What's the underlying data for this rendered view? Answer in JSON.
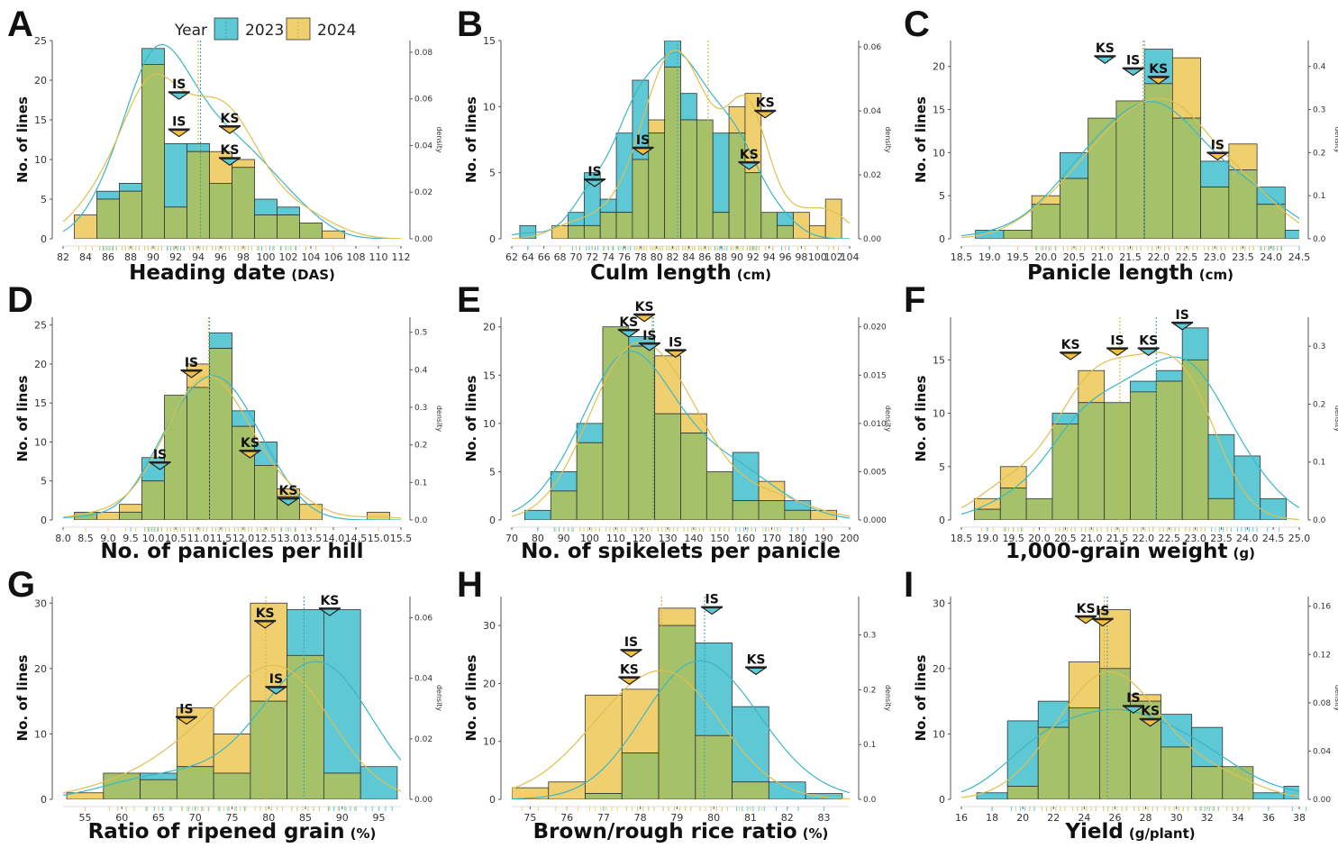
{
  "colors": {
    "y2023": "#5ec8d4",
    "y2024": "#f0d06e",
    "overlap": "#a5c26a",
    "edge": "#333333",
    "axis": "#555555"
  },
  "legend": {
    "title": "Year",
    "items": [
      "2023",
      "2024"
    ]
  },
  "y_axis_label": "No. of lines",
  "density_axis_label": "density",
  "chart_data": [
    {
      "letter": "A",
      "type": "bar",
      "xlabel": "Heading date",
      "xunit": "(DAS)",
      "xlim": [
        82,
        112
      ],
      "xticks": [
        82,
        84,
        86,
        88,
        90,
        92,
        94,
        96,
        98,
        100,
        102,
        104,
        106,
        108,
        110,
        112
      ],
      "ylim": [
        0,
        25
      ],
      "yticks": [
        0,
        5,
        10,
        15,
        20,
        25
      ],
      "dlim": [
        0,
        0.085
      ],
      "dticks": [
        "0.00",
        "0.02",
        "0.04",
        "0.06",
        "0.08"
      ],
      "dvals": [
        0,
        0.02,
        0.04,
        0.06,
        0.08
      ],
      "bin_start": 83,
      "bin_width": 2,
      "series": [
        {
          "name": "2023",
          "values": [
            0,
            6,
            7,
            24,
            12,
            12,
            7,
            9,
            5,
            4,
            2,
            0
          ]
        },
        {
          "name": "2024",
          "values": [
            3,
            5,
            6,
            22,
            4,
            11,
            11,
            10,
            3,
            3,
            2,
            1
          ]
        }
      ],
      "means": {
        "2023": 94.2,
        "2024": 94.0
      },
      "markers": [
        {
          "label": "IS",
          "year": "2023",
          "x": 92.3,
          "y": 18.5
        },
        {
          "label": "IS",
          "year": "2024",
          "x": 92.3,
          "y": 13.8
        },
        {
          "label": "KS",
          "year": "2024",
          "x": 96.8,
          "y": 14.2
        },
        {
          "label": "KS",
          "year": "2023",
          "x": 96.8,
          "y": 10.2
        }
      ]
    },
    {
      "letter": "B",
      "type": "bar",
      "xlabel": "Culm length",
      "xunit": "(cm)",
      "xlim": [
        62,
        104
      ],
      "xticks": [
        62,
        64,
        66,
        68,
        70,
        72,
        74,
        76,
        78,
        80,
        82,
        84,
        86,
        88,
        90,
        92,
        94,
        96,
        98,
        100,
        102,
        104
      ],
      "ylim": [
        0,
        15
      ],
      "yticks": [
        0,
        5,
        10,
        15
      ],
      "dlim": [
        0,
        0.062
      ],
      "dticks": [
        "0.00",
        "0.02",
        "0.04",
        "0.06"
      ],
      "dvals": [
        0,
        0.02,
        0.04,
        0.06
      ],
      "bin_start": 63,
      "bin_width": 2,
      "series": [
        {
          "name": "2023",
          "values": [
            1,
            0,
            0,
            2,
            5,
            3,
            8,
            12,
            8,
            15,
            11,
            9,
            8,
            8,
            5,
            2,
            2,
            0,
            0,
            0
          ]
        },
        {
          "name": "2024",
          "values": [
            0,
            0,
            1,
            1,
            1,
            2,
            2,
            6,
            9,
            13,
            9,
            9,
            2,
            10,
            11,
            2,
            1,
            2,
            1,
            3
          ]
        }
      ],
      "means": {
        "2023": 82.6,
        "2024": 86.4
      },
      "markers": [
        {
          "label": "IS",
          "year": "2023",
          "x": 72.3,
          "y": 4.5
        },
        {
          "label": "IS",
          "year": "2024",
          "x": 78.3,
          "y": 6.9
        },
        {
          "label": "KS",
          "year": "2024",
          "x": 93.5,
          "y": 9.7
        },
        {
          "label": "KS",
          "year": "2023",
          "x": 91.5,
          "y": 5.8
        }
      ]
    },
    {
      "letter": "C",
      "type": "bar",
      "xlabel": "Panicle length",
      "xunit": "(cm)",
      "xlim": [
        18.5,
        24.5
      ],
      "xticks": [
        "18.5",
        "19.0",
        "19.5",
        "20.0",
        "20.5",
        "21.0",
        "21.5",
        "22.0",
        "22.5",
        "23.0",
        "23.5",
        "24.0",
        "24.5"
      ],
      "ylim": [
        0,
        23
      ],
      "yticks": [
        0,
        5,
        10,
        15,
        20
      ],
      "dlim": [
        0,
        0.46
      ],
      "dticks": [
        "0.0",
        "0.1",
        "0.2",
        "0.3",
        "0.4"
      ],
      "dvals": [
        0,
        0.1,
        0.2,
        0.3,
        0.4
      ],
      "bin_start": 18.75,
      "bin_width": 0.5,
      "series": [
        {
          "name": "2023",
          "values": [
            1,
            1,
            4,
            10,
            14,
            16,
            22,
            14,
            9,
            8,
            6,
            1
          ]
        },
        {
          "name": "2024",
          "values": [
            0,
            1,
            5,
            7,
            14,
            16,
            18,
            21,
            6,
            11,
            4,
            0
          ]
        }
      ],
      "means": {
        "2023": 21.75,
        "2024": 21.72
      },
      "markers": [
        {
          "label": "KS",
          "year": "2023",
          "x": 21.05,
          "y": 21.2
        },
        {
          "label": "IS",
          "year": "2023",
          "x": 21.55,
          "y": 19.8
        },
        {
          "label": "KS",
          "year": "2024",
          "x": 22.0,
          "y": 18.8
        },
        {
          "label": "IS",
          "year": "2024",
          "x": 23.05,
          "y": 10.0
        }
      ]
    },
    {
      "letter": "D",
      "type": "bar",
      "xlabel": "No. of panicles per hill",
      "xunit": "",
      "xlim": [
        8.0,
        15.5
      ],
      "xticks": [
        "8.0",
        "8.5",
        "9.0",
        "9.5",
        "10.0",
        "10.5",
        "11.0",
        "11.5",
        "12.0",
        "12.5",
        "13.0",
        "13.5",
        "14.0",
        "14.5",
        "15.0",
        "15.5"
      ],
      "ylim": [
        0,
        26
      ],
      "yticks": [
        0,
        5,
        10,
        15,
        20,
        25
      ],
      "dlim": [
        0,
        0.54
      ],
      "dticks": [
        "0.0",
        "0.1",
        "0.2",
        "0.3",
        "0.4",
        "0.5"
      ],
      "dvals": [
        0,
        0.1,
        0.2,
        0.3,
        0.4,
        0.5
      ],
      "bin_start": 8.25,
      "bin_width": 0.5,
      "series": [
        {
          "name": "2023",
          "values": [
            1,
            0,
            1,
            8,
            16,
            17,
            24,
            14,
            10,
            3,
            0,
            0,
            0,
            0
          ]
        },
        {
          "name": "2024",
          "values": [
            1,
            1,
            2,
            5,
            16,
            20,
            22,
            12,
            7,
            4,
            2,
            0,
            0,
            1
          ]
        }
      ],
      "means": {
        "2023": 11.25,
        "2024": 11.23
      },
      "markers": [
        {
          "label": "IS",
          "year": "2024",
          "x": 10.85,
          "y": 19.2
        },
        {
          "label": "IS",
          "year": "2023",
          "x": 10.15,
          "y": 7.4
        },
        {
          "label": "KS",
          "year": "2024",
          "x": 12.15,
          "y": 8.9
        },
        {
          "label": "KS",
          "year": "2023",
          "x": 13.0,
          "y": 2.8
        }
      ]
    },
    {
      "letter": "E",
      "type": "bar",
      "xlabel": "No. of spikelets per panicle",
      "xunit": "",
      "xlim": [
        70,
        200
      ],
      "xticks": [
        70,
        80,
        90,
        100,
        110,
        120,
        130,
        140,
        150,
        160,
        170,
        180,
        190,
        200
      ],
      "ylim": [
        0,
        21
      ],
      "yticks": [
        0,
        5,
        10,
        15,
        20
      ],
      "dlim": [
        0,
        0.021
      ],
      "dticks": [
        "0.000",
        "0.005",
        "0.010",
        "0.015",
        "0.020"
      ],
      "dvals": [
        0,
        0.005,
        0.01,
        0.015,
        0.02
      ],
      "bin_start": 75,
      "bin_width": 10,
      "series": [
        {
          "name": "2023",
          "values": [
            1,
            5,
            10,
            20,
            19,
            11,
            9,
            5,
            7,
            2,
            2,
            0
          ]
        },
        {
          "name": "2024",
          "values": [
            0,
            3,
            8,
            20,
            18,
            17,
            11,
            5,
            2,
            4,
            1,
            1
          ]
        }
      ],
      "means": {
        "2023": 124.5,
        "2024": 124.0
      },
      "markers": [
        {
          "label": "KS",
          "year": "2023",
          "x": 115,
          "y": 19.7
        },
        {
          "label": "KS",
          "year": "2024",
          "x": 121,
          "y": 21.3
        },
        {
          "label": "IS",
          "year": "2023",
          "x": 123,
          "y": 18.3
        },
        {
          "label": "IS",
          "year": "2024",
          "x": 133,
          "y": 17.6
        }
      ]
    },
    {
      "letter": "F",
      "type": "bar",
      "xlabel": "1,000-grain weight",
      "xunit": "(g)",
      "xlim": [
        18.5,
        25.0
      ],
      "xticks": [
        "18.5",
        "19.0",
        "19.5",
        "20.0",
        "20.5",
        "21.0",
        "21.5",
        "22.0",
        "22.5",
        "23.0",
        "23.5",
        "24.0",
        "24.5",
        "25.0"
      ],
      "ylim": [
        0,
        19
      ],
      "yticks": [
        0,
        5,
        10,
        15
      ],
      "dlim": [
        0,
        0.35
      ],
      "dticks": [
        "0.0",
        "0.1",
        "0.2",
        "0.3"
      ],
      "dvals": [
        0,
        0.1,
        0.2,
        0.3
      ],
      "bin_start": 18.75,
      "bin_width": 0.5,
      "series": [
        {
          "name": "2023",
          "values": [
            1,
            3,
            2,
            10,
            11,
            11,
            13,
            14,
            18,
            8,
            6,
            2
          ]
        },
        {
          "name": "2024",
          "values": [
            2,
            5,
            2,
            9,
            14,
            11,
            12,
            13,
            15,
            2,
            0,
            0
          ]
        }
      ],
      "means": {
        "2023": 22.25,
        "2024": 21.55
      },
      "markers": [
        {
          "label": "KS",
          "year": "2024",
          "x": 20.6,
          "y": 15.7
        },
        {
          "label": "IS",
          "year": "2024",
          "x": 21.5,
          "y": 16.1
        },
        {
          "label": "KS",
          "year": "2023",
          "x": 22.1,
          "y": 16.1
        },
        {
          "label": "IS",
          "year": "2023",
          "x": 22.75,
          "y": 18.5
        }
      ]
    },
    {
      "letter": "G",
      "type": "bar",
      "xlabel": "Ratio of ripened grain",
      "xunit": "(%)",
      "xlim": [
        52,
        98
      ],
      "xticks": [
        55,
        60,
        65,
        70,
        75,
        80,
        85,
        90,
        95
      ],
      "ylim": [
        0,
        31
      ],
      "yticks": [
        0,
        10,
        20,
        30
      ],
      "dlim": [
        0,
        0.067
      ],
      "dticks": [
        "0.00",
        "0.02",
        "0.04",
        "0.06"
      ],
      "dvals": [
        0,
        0.02,
        0.04,
        0.06
      ],
      "bin_start": 52.5,
      "bin_width": 5,
      "series": [
        {
          "name": "2023",
          "values": [
            0,
            4,
            4,
            5,
            4,
            15,
            29,
            29,
            5
          ]
        },
        {
          "name": "2024",
          "values": [
            1,
            4,
            3,
            14,
            10,
            30,
            22,
            4,
            0
          ]
        }
      ],
      "means": {
        "2023": 84.8,
        "2024": 79.6
      },
      "markers": [
        {
          "label": "IS",
          "year": "2024",
          "x": 68.8,
          "y": 12.6
        },
        {
          "label": "KS",
          "year": "2024",
          "x": 79.5,
          "y": 27.3
        },
        {
          "label": "IS",
          "year": "2023",
          "x": 81.0,
          "y": 17.2
        },
        {
          "label": "KS",
          "year": "2023",
          "x": 88.3,
          "y": 29.2
        }
      ]
    },
    {
      "letter": "H",
      "type": "bar",
      "xlabel": "Brown/rough rice ratio",
      "xunit": "(%)",
      "xlim": [
        74.5,
        83.7
      ],
      "xticks": [
        75,
        76,
        77,
        78,
        79,
        80,
        81,
        82,
        83
      ],
      "ylim": [
        0,
        35
      ],
      "yticks": [
        0,
        10,
        20,
        30
      ],
      "dlim": [
        0,
        0.37
      ],
      "dticks": [
        "0.0",
        "0.1",
        "0.2",
        "0.3"
      ],
      "dvals": [
        0,
        0.1,
        0.2,
        0.3
      ],
      "bin_start": 74.5,
      "bin_width": 1,
      "series": [
        {
          "name": "2023",
          "values": [
            0,
            0,
            1,
            8,
            30,
            27,
            16,
            3,
            1
          ]
        },
        {
          "name": "2024",
          "values": [
            2,
            3,
            18,
            19,
            33,
            11,
            3,
            0,
            0
          ]
        }
      ],
      "means": {
        "2023": 79.75,
        "2024": 78.58
      },
      "markers": [
        {
          "label": "IS",
          "year": "2024",
          "x": 77.75,
          "y": 25.8
        },
        {
          "label": "KS",
          "year": "2024",
          "x": 77.7,
          "y": 21.1
        },
        {
          "label": "IS",
          "year": "2023",
          "x": 79.95,
          "y": 33.2
        },
        {
          "label": "KS",
          "year": "2023",
          "x": 81.15,
          "y": 22.8
        }
      ]
    },
    {
      "letter": "I",
      "type": "bar",
      "xlabel": "Yield",
      "xunit": "(g/plant)",
      "xlim": [
        16,
        38
      ],
      "xticks": [
        16,
        18,
        20,
        22,
        24,
        26,
        28,
        30,
        32,
        34,
        36,
        38
      ],
      "ylim": [
        0,
        31
      ],
      "yticks": [
        0,
        10,
        20,
        30
      ],
      "dlim": [
        0,
        0.168
      ],
      "dticks": [
        "0.00",
        "0.04",
        "0.08",
        "0.12",
        "0.16"
      ],
      "dvals": [
        0,
        0.04,
        0.08,
        0.12,
        0.16
      ],
      "bin_start": 17,
      "bin_width": 2,
      "series": [
        {
          "name": "2023",
          "values": [
            1,
            12,
            15,
            14,
            20,
            15,
            13,
            11,
            5,
            1,
            2
          ]
        },
        {
          "name": "2024",
          "values": [
            0,
            2,
            11,
            21,
            29,
            16,
            8,
            5,
            5,
            0,
            0
          ]
        }
      ],
      "means": {
        "2023": 25.5,
        "2024": 25.3
      },
      "markers": [
        {
          "label": "KS",
          "year": "2024",
          "x": 24.1,
          "y": 28.0
        },
        {
          "label": "IS",
          "year": "2024",
          "x": 25.2,
          "y": 27.6
        },
        {
          "label": "IS",
          "year": "2023",
          "x": 27.2,
          "y": 14.3
        },
        {
          "label": "KS",
          "year": "2024",
          "x": 28.3,
          "y": 12.3
        }
      ]
    }
  ]
}
